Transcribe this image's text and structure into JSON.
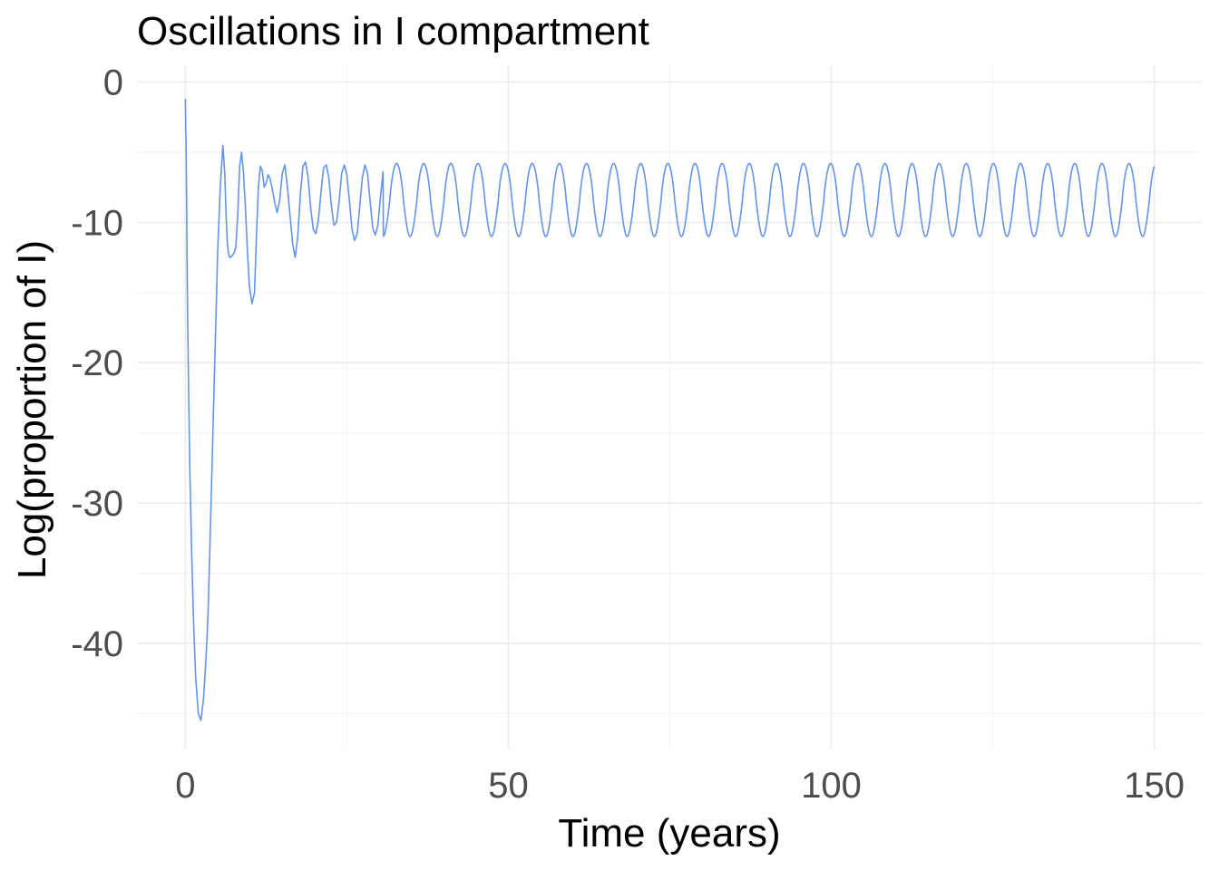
{
  "chart_data": {
    "type": "line",
    "title": "Oscillations in I compartment",
    "xlabel": "Time (years)",
    "ylabel": "Log(proportion of I)",
    "xlim": [
      -7.5,
      157.5
    ],
    "ylim": [
      -47.5,
      1.2
    ],
    "x_ticks": [
      0,
      50,
      100,
      150
    ],
    "x_tick_labels": [
      "0",
      "50",
      "100",
      "150"
    ],
    "y_ticks": [
      0,
      -10,
      -20,
      -30,
      -40
    ],
    "y_tick_labels": [
      "0",
      "-10",
      "-20",
      "-30",
      "-40"
    ],
    "x_minor_ticks": [
      25,
      75,
      125
    ],
    "y_minor_ticks": [
      -5,
      -15,
      -25,
      -35,
      -45
    ],
    "grid": true,
    "legend": "none",
    "series": [
      {
        "color": "#6495ED",
        "x": [
          0,
          0.05,
          0.1,
          0.2,
          0.3,
          0.5,
          0.7,
          1.0,
          1.3,
          1.6,
          2.0,
          2.4,
          2.8,
          3.0,
          3.2,
          3.5,
          3.8,
          4.2,
          4.6,
          5.0,
          5.4,
          5.8,
          6.1,
          6.3,
          6.5,
          6.7,
          6.9,
          7.2,
          7.5,
          7.8,
          8.1,
          8.4,
          8.7,
          9.0,
          9.3,
          9.6,
          9.9,
          10.3,
          10.7,
          11.0,
          11.3,
          11.6,
          11.9,
          12.2,
          12.5,
          12.8,
          13.1,
          13.4,
          13.8,
          14.2,
          14.6,
          15.0,
          15.4,
          15.8,
          16.2,
          16.6,
          17.0,
          17.4,
          17.8,
          18.2,
          18.6,
          19.0,
          19.4,
          19.8,
          20.2,
          20.6,
          21.0,
          21.4,
          21.8,
          22.2,
          22.6,
          23.0,
          23.4,
          23.8,
          24.2,
          24.6,
          25.0,
          25.4,
          25.8,
          26.2,
          26.6,
          27.0,
          27.4,
          27.8,
          28.2,
          28.6,
          29.0,
          29.4,
          29.8,
          30.2,
          30.6
        ],
        "y": [
          -1.2,
          -3.5,
          -4.0,
          -9.0,
          -15.0,
          -22.0,
          -28.0,
          -34.0,
          -39.0,
          -42.5,
          -45.0,
          -45.5,
          -44.0,
          -42.5,
          -41.0,
          -38.0,
          -33.0,
          -26.0,
          -19.0,
          -12.0,
          -7.5,
          -4.5,
          -6.5,
          -9.5,
          -11.5,
          -12.3,
          -12.5,
          -12.4,
          -12.2,
          -11.8,
          -9.5,
          -6.0,
          -5.0,
          -6.5,
          -9.0,
          -12.0,
          -14.5,
          -15.8,
          -15.0,
          -11.0,
          -7.5,
          -6.0,
          -6.3,
          -7.5,
          -7.2,
          -6.6,
          -6.9,
          -7.5,
          -8.5,
          -9.3,
          -8.4,
          -6.5,
          -5.9,
          -7.5,
          -9.5,
          -11.5,
          -12.5,
          -11.0,
          -8.0,
          -6.0,
          -5.7,
          -6.8,
          -9.0,
          -10.5,
          -10.8,
          -9.8,
          -7.8,
          -6.1,
          -5.9,
          -6.8,
          -8.8,
          -10.2,
          -10.0,
          -8.5,
          -6.5,
          -5.9,
          -6.6,
          -8.5,
          -10.5,
          -11.3,
          -10.8,
          -8.8,
          -6.8,
          -5.9,
          -6.5,
          -8.5,
          -10.4,
          -10.9,
          -10.2,
          -8.2,
          -6.4
        ],
        "steady_oscillation": {
          "x_range": [
            30.6,
            150
          ],
          "period_years": 4.2,
          "peak": -5.8,
          "trough": -11.0
        }
      }
    ]
  }
}
